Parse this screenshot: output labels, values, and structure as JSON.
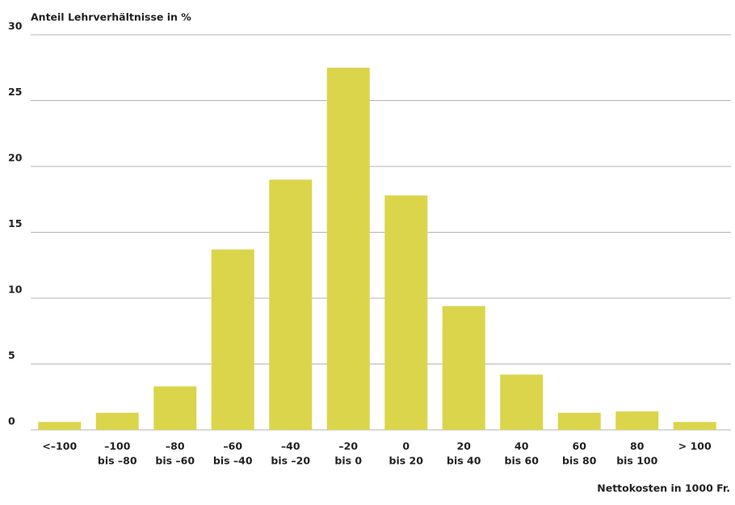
{
  "chart_data": {
    "type": "bar",
    "title": "Anteil Lehrverhältnisse in %",
    "x_label": "Nettokosten in 1000 Fr.",
    "categories": [
      [
        "<–100"
      ],
      [
        "–100",
        "bis –80"
      ],
      [
        "–80",
        "bis –60"
      ],
      [
        "–60",
        "bis –40"
      ],
      [
        "–40",
        "bis –20"
      ],
      [
        "–20",
        "bis 0"
      ],
      [
        "0",
        "bis 20"
      ],
      [
        "20",
        "bis 40"
      ],
      [
        "40",
        "bis 60"
      ],
      [
        "60",
        "bis 80"
      ],
      [
        "80",
        "bis 100"
      ],
      [
        "> 100"
      ]
    ],
    "values": [
      0.6,
      1.3,
      3.3,
      13.7,
      19.0,
      27.5,
      17.8,
      9.4,
      4.2,
      1.3,
      1.4,
      0.6
    ],
    "color": "#dbd54c",
    "ylim": [
      0,
      30
    ],
    "yticks": [
      0,
      5,
      10,
      15,
      20,
      25,
      30
    ],
    "grid": true
  }
}
